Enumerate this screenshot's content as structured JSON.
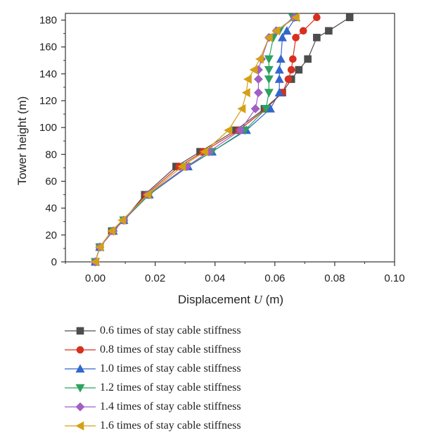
{
  "chart_data": {
    "type": "line",
    "xlabel_prefix": "Displacement ",
    "xlabel_var": "U",
    "xlabel_unit": " (m)",
    "ylabel": "Tower height (m)",
    "xlim": [
      -0.01,
      0.1
    ],
    "ylim": [
      0,
      185
    ],
    "xticks": [
      0.0,
      0.02,
      0.04,
      0.06,
      0.08,
      0.1
    ],
    "yticks": [
      0,
      20,
      40,
      60,
      80,
      100,
      120,
      140,
      160,
      180
    ],
    "xtick_labels": [
      "0.00",
      "0.02",
      "0.04",
      "0.06",
      "0.08",
      "0.10"
    ],
    "ytick_labels": [
      "0",
      "20",
      "40",
      "60",
      "80",
      "100",
      "120",
      "140",
      "160",
      "180"
    ],
    "grid": false,
    "legend_position": "below",
    "series": [
      {
        "name": "0.6 times of stay cable stiffness",
        "color": "#4d4d4d",
        "marker": "square",
        "x": [
          0.0,
          0.0015,
          0.0055,
          0.0095,
          0.0165,
          0.027,
          0.035,
          0.047,
          0.0565,
          0.0625,
          0.0655,
          0.068,
          0.071,
          0.074,
          0.078,
          0.085
        ],
        "y": [
          0,
          11,
          23,
          31,
          50,
          71,
          82,
          98,
          114,
          126,
          136,
          143,
          151,
          167,
          172,
          182
        ]
      },
      {
        "name": "0.8 times of stay cable stiffness",
        "color": "#d7301f",
        "marker": "circle",
        "x": [
          0.0,
          0.0015,
          0.0055,
          0.0095,
          0.017,
          0.028,
          0.036,
          0.048,
          0.057,
          0.0625,
          0.0645,
          0.0655,
          0.066,
          0.067,
          0.0695,
          0.074
        ],
        "y": [
          0,
          11,
          23,
          31,
          50,
          71,
          82,
          98,
          114,
          126,
          136,
          143,
          151,
          167,
          172,
          182
        ]
      },
      {
        "name": "1.0 times of stay cable stiffness",
        "color": "#3366cc",
        "marker": "triangle-up",
        "x": [
          0.0,
          0.0015,
          0.006,
          0.0095,
          0.018,
          0.031,
          0.039,
          0.0505,
          0.0585,
          0.0615,
          0.0615,
          0.0615,
          0.062,
          0.0625,
          0.064,
          0.067
        ],
        "y": [
          0,
          11,
          23,
          31,
          50,
          71,
          82,
          98,
          114,
          126,
          136,
          143,
          151,
          167,
          172,
          182
        ]
      },
      {
        "name": "1.2 times of stay cable stiffness",
        "color": "#2ca25f",
        "marker": "triangle-down",
        "x": [
          0.0,
          0.0015,
          0.006,
          0.0095,
          0.018,
          0.0305,
          0.039,
          0.05,
          0.057,
          0.058,
          0.058,
          0.058,
          0.058,
          0.0595,
          0.0615,
          0.066
        ],
        "y": [
          0,
          11,
          23,
          31,
          50,
          71,
          82,
          98,
          114,
          126,
          136,
          143,
          151,
          167,
          172,
          182
        ]
      },
      {
        "name": "1.4 times of stay cable stiffness",
        "color": "#a05fc4",
        "marker": "diamond",
        "x": [
          0.0,
          0.0015,
          0.006,
          0.0095,
          0.0175,
          0.0305,
          0.038,
          0.0485,
          0.0535,
          0.0545,
          0.0545,
          0.0545,
          0.0555,
          0.058,
          0.0605,
          0.0665
        ],
        "y": [
          0,
          11,
          23,
          31,
          50,
          71,
          82,
          98,
          114,
          126,
          136,
          143,
          151,
          167,
          172,
          182
        ]
      },
      {
        "name": "1.6 times of stay cable stiffness",
        "color": "#d4a017",
        "marker": "triangle-left",
        "x": [
          0.0,
          0.0015,
          0.0055,
          0.009,
          0.0175,
          0.029,
          0.0365,
          0.0445,
          0.049,
          0.0505,
          0.051,
          0.053,
          0.055,
          0.058,
          0.0605,
          0.067
        ],
        "y": [
          0,
          11,
          23,
          31,
          50,
          71,
          82,
          98,
          114,
          126,
          136,
          143,
          151,
          167,
          172,
          182
        ]
      }
    ]
  }
}
